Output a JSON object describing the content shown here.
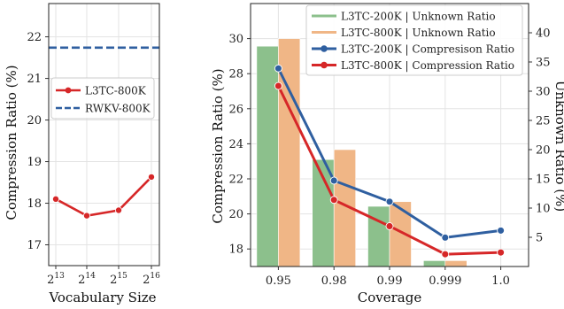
{
  "chart_data": [
    {
      "type": "line",
      "x": [
        "2^13",
        "2^14",
        "2^15",
        "2^16"
      ],
      "x_tick_labels": [
        {
          "base": "2",
          "exp": "13"
        },
        {
          "base": "2",
          "exp": "14"
        },
        {
          "base": "2",
          "exp": "15"
        },
        {
          "base": "2",
          "exp": "16"
        }
      ],
      "series": [
        {
          "name": "L3TC-800K",
          "values": [
            18.1,
            17.7,
            17.83,
            18.63
          ],
          "color": "#d62728",
          "marker": "circle"
        },
        {
          "name": "RWKV-800K",
          "constant": 21.74,
          "color": "#2f5fa0",
          "style": "dashed"
        }
      ],
      "xlabel": "Vocabulary Size",
      "ylabel": "Compression Ratio (%)",
      "ylim": [
        16.5,
        22.8
      ],
      "yticks": [
        "17",
        "18",
        "19",
        "20",
        "21",
        "22"
      ],
      "legend": "center-right",
      "grid": true
    },
    {
      "type": "bar",
      "categories": [
        "0.95",
        "0.98",
        "0.99",
        "0.999",
        "1.0"
      ],
      "bar_series": [
        {
          "name": "L3TC-200K | Unknown Ratio",
          "values": [
            37.7,
            18.3,
            10.3,
            1.0,
            0
          ],
          "color": "#8cc08c"
        },
        {
          "name": "L3TC-800K | Unknown Ratio",
          "values": [
            39.0,
            20.0,
            11.1,
            1.0,
            0
          ],
          "color": "#f0b686"
        }
      ],
      "line_series": [
        {
          "name": "L3TC-200K | Compresison Ratio",
          "values": [
            28.3,
            21.9,
            20.7,
            18.65,
            19.05
          ],
          "color": "#2f5fa0"
        },
        {
          "name": "L3TC-800K | Compression Ratio",
          "values": [
            27.3,
            20.8,
            19.3,
            17.7,
            17.8
          ],
          "color": "#d62728"
        }
      ],
      "xlabel": "Coverage",
      "ylabel": "Compression Ratio (%)",
      "ylabel_right": "Unknown Ratio (%)",
      "ylim": [
        17.0,
        32.0
      ],
      "ylim_right": [
        0,
        45
      ],
      "yticks": [
        "18",
        "20",
        "22",
        "24",
        "26",
        "28",
        "30"
      ],
      "yticks_right": [
        "5",
        "10",
        "15",
        "20",
        "25",
        "30",
        "35",
        "40"
      ],
      "legend": "top-right",
      "grid": true
    }
  ]
}
